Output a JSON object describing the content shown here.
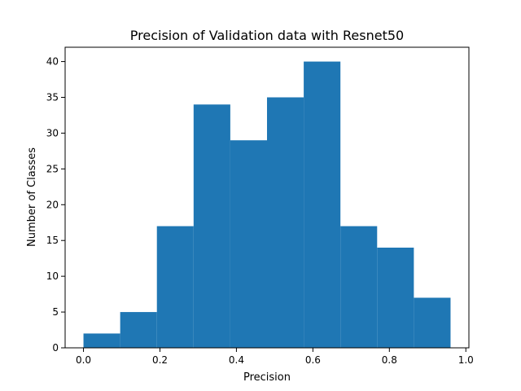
{
  "chart_data": {
    "type": "bar",
    "title": "Precision of Validation data with Resnet50",
    "xlabel": "Precision",
    "ylabel": "Number of Classes",
    "bin_edges": [
      0.0,
      0.096,
      0.192,
      0.288,
      0.384,
      0.48,
      0.576,
      0.672,
      0.768,
      0.864,
      0.96
    ],
    "values": [
      2,
      5,
      17,
      34,
      29,
      35,
      40,
      17,
      14,
      7
    ],
    "xlim": [
      -0.048,
      1.008
    ],
    "ylim": [
      0,
      42
    ],
    "xticks": [
      0.0,
      0.2,
      0.4,
      0.6,
      0.8,
      1.0
    ],
    "xtick_labels": [
      "0.0",
      "0.2",
      "0.4",
      "0.6",
      "0.8",
      "1.0"
    ],
    "yticks": [
      0,
      5,
      10,
      15,
      20,
      25,
      30,
      35,
      40
    ],
    "ytick_labels": [
      "0",
      "5",
      "10",
      "15",
      "20",
      "25",
      "30",
      "35",
      "40"
    ],
    "bar_color": "#1f77b4",
    "grid": false
  }
}
